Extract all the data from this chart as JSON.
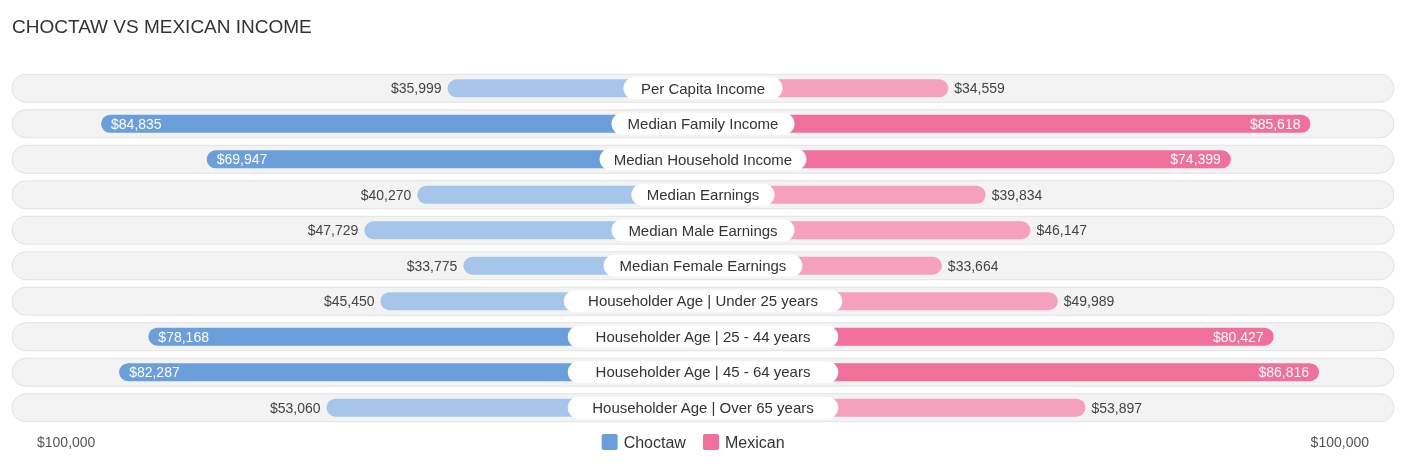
{
  "chart_data": [
    {
      "type": "bar",
      "orientation": "horizontal",
      "title": "CHOCTAW VS MEXICAN INCOME",
      "categories": [
        "Per Capita Income",
        "Median Family Income",
        "Median Household Income",
        "Median Earnings",
        "Median Male Earnings",
        "Median Female Earnings",
        "Householder Age | Under 25 years",
        "Householder Age | 25 - 44 years",
        "Householder Age | 45 - 64 years",
        "Householder Age | Over 65 years"
      ],
      "series": [
        {
          "name": "Choctaw",
          "color": "#6a9fdc",
          "colors": [
            "#a5c6ea",
            "#6a9fdc",
            "#6a9fdc",
            "#a5c6ea",
            "#a5c6ea",
            "#a5c6ea",
            "#a5c6ea",
            "#6a9fdc",
            "#6a9fdc",
            "#a5c6ea"
          ],
          "values": [
            35999,
            84835,
            69947,
            40270,
            47729,
            33775,
            45450,
            78168,
            82287,
            53060
          ],
          "value_labels": [
            "$35,999",
            "$84,835",
            "$69,947",
            "$40,270",
            "$47,729",
            "$33,775",
            "$45,450",
            "$78,168",
            "$82,287",
            "$53,060"
          ]
        }
      ],
      "annotations": [
        "$100,000"
      ],
      "legend": "bottom"
    },
    {
      "type": "bar",
      "orientation": "horizontal",
      "categories": [
        null,
        null,
        null,
        null,
        null,
        null,
        null,
        null,
        null,
        null
      ],
      "series": [
        {
          "name": "Mexican",
          "color": "#f07099",
          "colors": [
            "#f5a0bc",
            "#f07099",
            "#f07099",
            "#f5a0bc",
            "#f5a0bc",
            "#f5a0bc",
            "#f5a0bc",
            "#f07099",
            "#f07099",
            "#f5a0bc"
          ],
          "values": [
            34559,
            85618,
            74399,
            39834,
            46147,
            33664,
            49989,
            80427,
            86816,
            53897
          ],
          "value_labels": [
            "$34,559",
            "$85,618",
            "$74,399",
            "$39,834",
            "$46,147",
            "$33,664",
            "$49,989",
            "$80,427",
            "$86,816",
            "$53,897"
          ]
        }
      ],
      "annotations": [
        "$100,000"
      ],
      "legend": "bottom"
    }
  ]
}
